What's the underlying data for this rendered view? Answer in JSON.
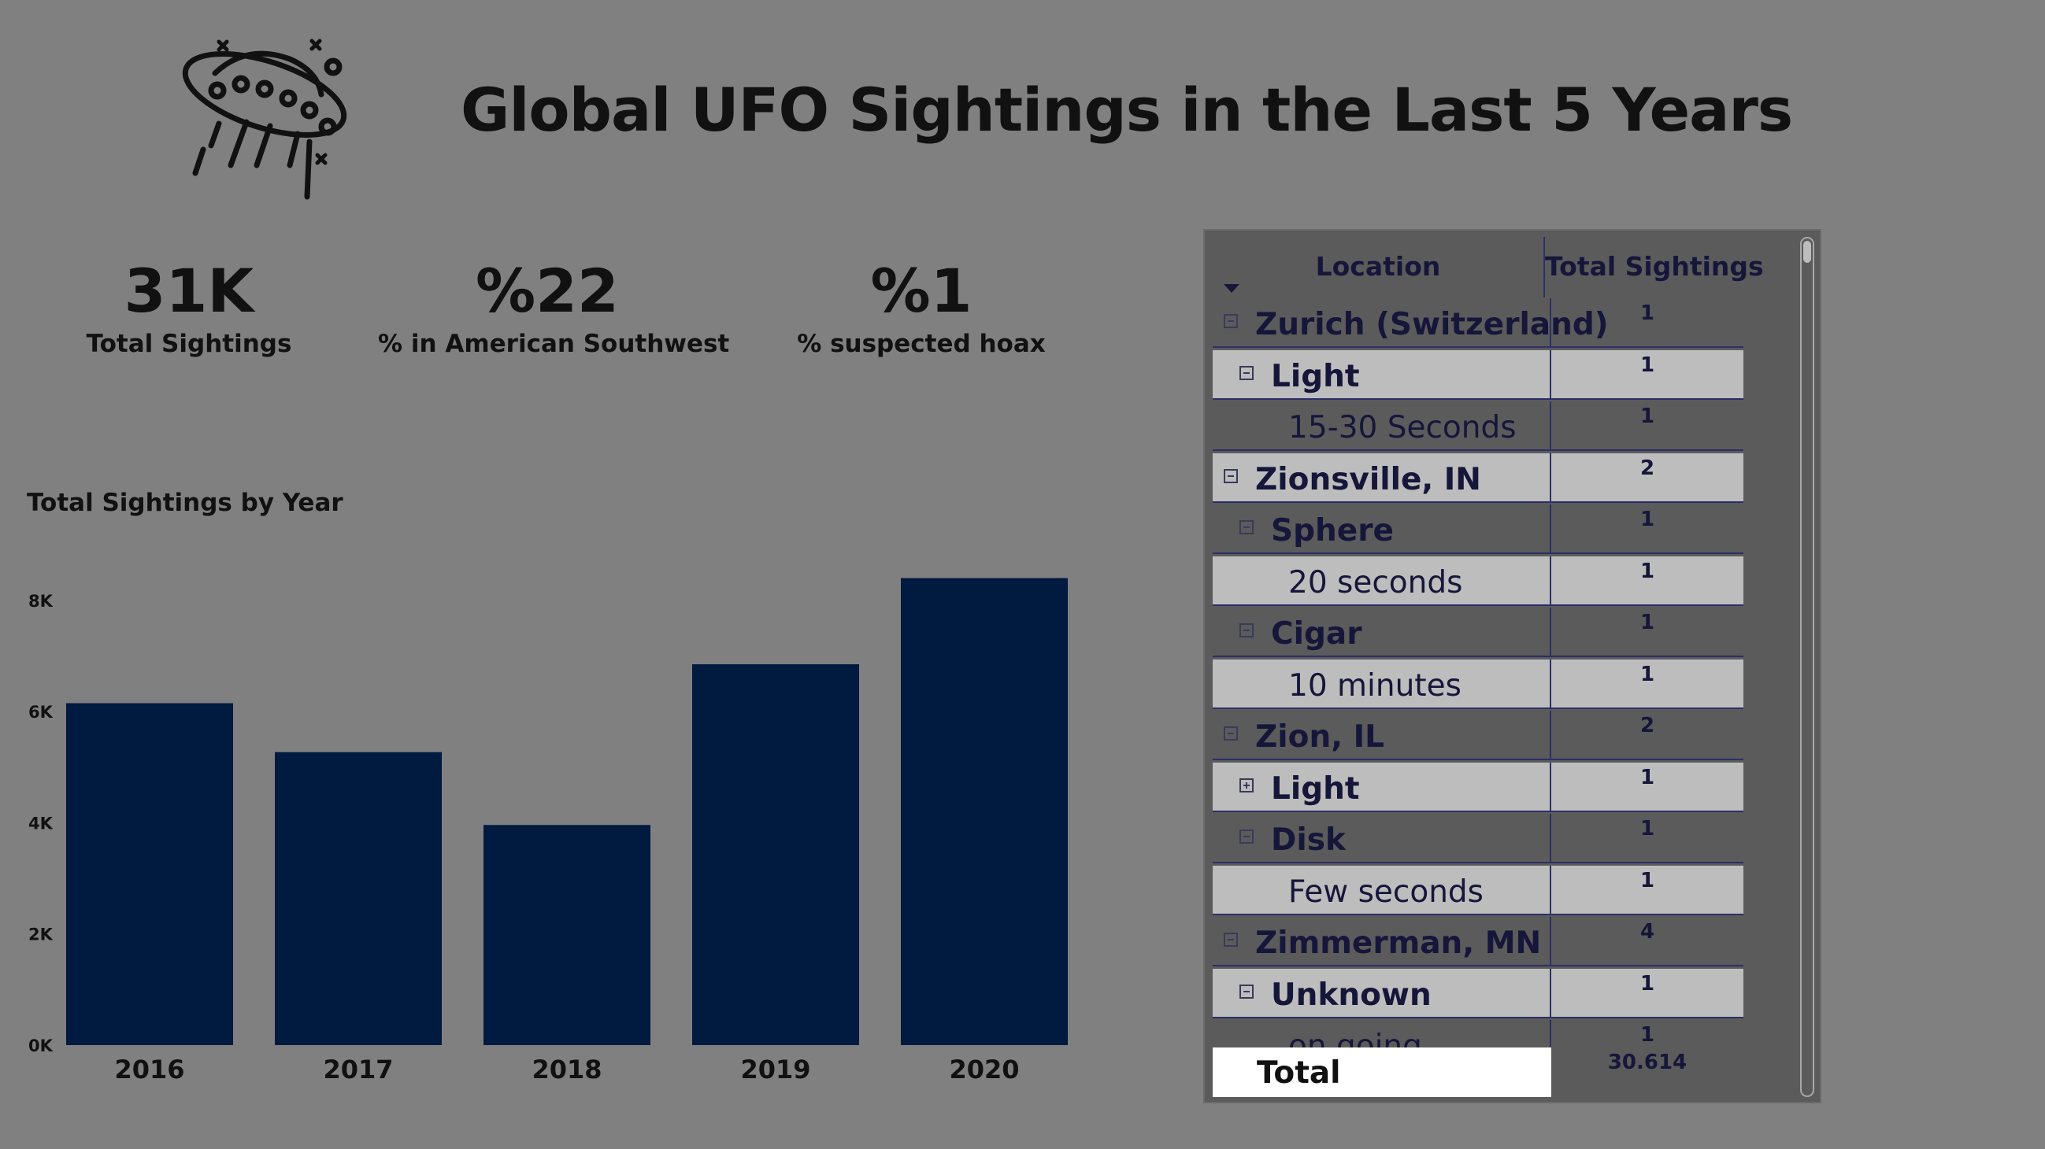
{
  "header": {
    "title": "Global UFO Sightings in the Last 5 Years",
    "logo_icon": "ufo-icon"
  },
  "kpis": [
    {
      "value": "31K",
      "label": "Total Sightings"
    },
    {
      "value": "%22",
      "label": "% in American Southwest"
    },
    {
      "value": "%1",
      "label": "% suspected hoax"
    }
  ],
  "chart_data": {
    "type": "bar",
    "title": "Total Sightings by Year",
    "categories": [
      "2016",
      "2017",
      "2018",
      "2019",
      "2020"
    ],
    "values": [
      6150,
      5270,
      3960,
      6850,
      8400
    ],
    "yticks": [
      "0K",
      "2K",
      "4K",
      "6K",
      "8K"
    ],
    "ylim": [
      0,
      8000
    ],
    "bar_color": "#001a40",
    "grid": false
  },
  "matrix": {
    "headers": {
      "location": "Location",
      "total": "Total Sightings"
    },
    "rows": [
      {
        "label": "Zurich (Switzerland)",
        "value": "1",
        "level": 0,
        "toggle": "minus",
        "shade": "dark"
      },
      {
        "label": "Light",
        "value": "1",
        "level": 1,
        "toggle": "minus",
        "shade": "light"
      },
      {
        "label": "15-30 Seconds",
        "value": "1",
        "level": 2,
        "toggle": "none",
        "shade": "dark"
      },
      {
        "label": "Zionsville, IN",
        "value": "2",
        "level": 0,
        "toggle": "minus",
        "shade": "light"
      },
      {
        "label": "Sphere",
        "value": "1",
        "level": 1,
        "toggle": "minus",
        "shade": "dark"
      },
      {
        "label": "20 seconds",
        "value": "1",
        "level": 2,
        "toggle": "none",
        "shade": "light"
      },
      {
        "label": "Cigar",
        "value": "1",
        "level": 1,
        "toggle": "minus",
        "shade": "dark"
      },
      {
        "label": "10 minutes",
        "value": "1",
        "level": 2,
        "toggle": "none",
        "shade": "light"
      },
      {
        "label": "Zion, IL",
        "value": "2",
        "level": 0,
        "toggle": "minus",
        "shade": "dark"
      },
      {
        "label": "Light",
        "value": "1",
        "level": 1,
        "toggle": "plus",
        "shade": "light"
      },
      {
        "label": "Disk",
        "value": "1",
        "level": 1,
        "toggle": "minus",
        "shade": "dark"
      },
      {
        "label": "Few seconds",
        "value": "1",
        "level": 2,
        "toggle": "none",
        "shade": "light"
      },
      {
        "label": "Zimmerman, MN",
        "value": "4",
        "level": 0,
        "toggle": "minus",
        "shade": "dark"
      },
      {
        "label": "Unknown",
        "value": "1",
        "level": 1,
        "toggle": "minus",
        "shade": "light"
      },
      {
        "label": "on going",
        "value": "1",
        "level": 2,
        "toggle": "none",
        "shade": "dark"
      }
    ],
    "total": {
      "label": "Total",
      "value": "30.614"
    }
  }
}
